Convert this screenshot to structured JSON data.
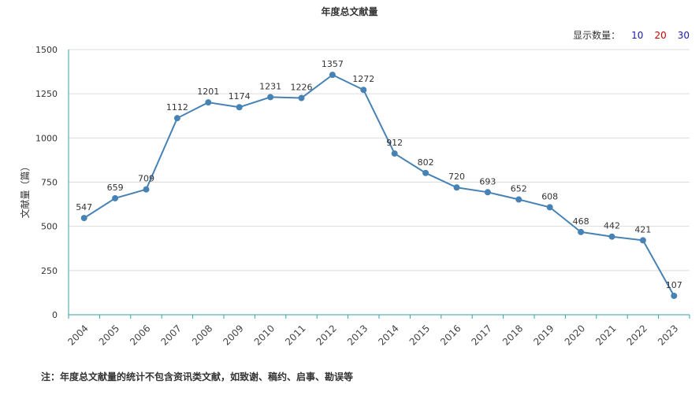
{
  "header": {
    "title": "年度总文献量",
    "count_label": "显示数量：",
    "count_options": [
      {
        "label": "10",
        "color": "#1a1aa6"
      },
      {
        "label": "20",
        "color": "#cc0000"
      },
      {
        "label": "30",
        "color": "#1a1aa6"
      }
    ]
  },
  "footnote": "注：年度总文献量的统计不包含资讯类文献，如致谢、稿约、启事、勘误等",
  "chart_data": {
    "type": "line",
    "title": "年度总文献量",
    "xlabel": "",
    "ylabel": "文献量（篇）",
    "ylim": [
      0,
      1500
    ],
    "yticks": [
      0,
      250,
      500,
      750,
      1000,
      1250,
      1500
    ],
    "categories": [
      "2004",
      "2005",
      "2006",
      "2007",
      "2008",
      "2009",
      "2010",
      "2011",
      "2012",
      "2013",
      "2014",
      "2015",
      "2016",
      "2017",
      "2018",
      "2019",
      "2020",
      "2021",
      "2022",
      "2023"
    ],
    "series": [
      {
        "values": [
          547,
          659,
          709,
          1112,
          1201,
          1174,
          1231,
          1226,
          1357,
          1272,
          912,
          802,
          720,
          693,
          652,
          608,
          468,
          442,
          421,
          107
        ]
      }
    ],
    "grid": true,
    "line_color": "#4682b4",
    "axis_color": "#3aa0a0"
  }
}
